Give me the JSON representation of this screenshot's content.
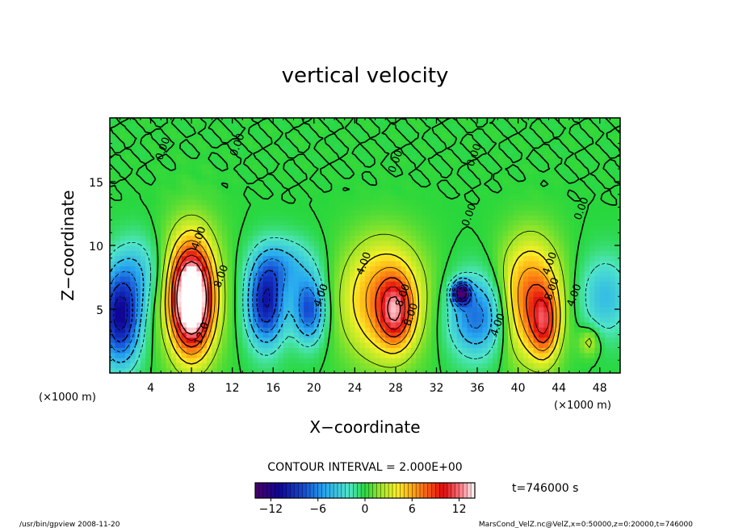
{
  "chart_data": {
    "type": "heatmap",
    "title": "vertical velocity",
    "xlabel": "X−coordinate",
    "ylabel": "Z−coordinate",
    "x_unit": "(×1000 m)",
    "x_unit_right": "(×1000 m)",
    "xlim": [
      0,
      50
    ],
    "ylim": [
      0,
      20
    ],
    "x_ticks": [
      4,
      8,
      12,
      16,
      20,
      24,
      28,
      32,
      36,
      40,
      44,
      48
    ],
    "y_ticks": [
      5,
      10,
      15
    ],
    "contour_interval_text": "CONTOUR INTERVAL = 2.000E+00",
    "time_text": "t=746000 s",
    "colorbar": {
      "min": -14,
      "max": 14,
      "ticks": [
        -12,
        -6,
        0,
        6,
        12
      ]
    },
    "contour_labels": [
      {
        "text": "0.00",
        "x": 5.5,
        "y": 17.5
      },
      {
        "text": "0.00",
        "x": 12.8,
        "y": 17.8
      },
      {
        "text": "0.00",
        "x": 28.3,
        "y": 16.5
      },
      {
        "text": "0.00",
        "x": 36.0,
        "y": 17.0
      },
      {
        "text": "0.00",
        "x": 35.5,
        "y": 12.3
      },
      {
        "text": "0.00",
        "x": 46.5,
        "y": 12.8
      },
      {
        "text": "4.00",
        "x": 9.0,
        "y": 10.5
      },
      {
        "text": "8.00",
        "x": 11.2,
        "y": 7.5
      },
      {
        "text": "12.0",
        "x": 9.3,
        "y": 3.0
      },
      {
        "text": "4.00",
        "x": 21.0,
        "y": 6.0
      },
      {
        "text": "4.00",
        "x": 25.2,
        "y": 8.5
      },
      {
        "text": "8.00",
        "x": 29.0,
        "y": 6.0
      },
      {
        "text": "8.00",
        "x": 29.8,
        "y": 4.5
      },
      {
        "text": "4.00",
        "x": 38.3,
        "y": 3.7
      },
      {
        "text": "4.00",
        "x": 43.4,
        "y": 8.5
      },
      {
        "text": "8.00",
        "x": 43.6,
        "y": 6.5
      },
      {
        "text": "4.00",
        "x": 45.8,
        "y": 6.0
      }
    ],
    "features": [
      {
        "x": 8.0,
        "y": 5.8,
        "sx": 1.3,
        "sy": 2.6,
        "v": 15
      },
      {
        "x": 8.0,
        "y": 6.3,
        "sx": 2.1,
        "sy": 3.9,
        "v": 5
      },
      {
        "x": 15.3,
        "y": 5.5,
        "sx": 1.3,
        "sy": 2.3,
        "v": -10
      },
      {
        "x": 19.5,
        "y": 5.0,
        "sx": 1.1,
        "sy": 1.8,
        "v": -8
      },
      {
        "x": 17.2,
        "y": 8.5,
        "sx": 2.0,
        "sy": 1.5,
        "v": -4
      },
      {
        "x": 26.8,
        "y": 5.8,
        "sx": 2.8,
        "sy": 3.2,
        "v": 7
      },
      {
        "x": 28.0,
        "y": 4.8,
        "sx": 1.1,
        "sy": 1.8,
        "v": 7
      },
      {
        "x": 34.4,
        "y": 6.3,
        "sx": 0.6,
        "sy": 0.6,
        "v": -12
      },
      {
        "x": 36.0,
        "y": 4.5,
        "sx": 2.0,
        "sy": 2.2,
        "v": -7
      },
      {
        "x": 41.2,
        "y": 5.8,
        "sx": 2.1,
        "sy": 3.2,
        "v": 8
      },
      {
        "x": 42.6,
        "y": 3.8,
        "sx": 0.9,
        "sy": 1.8,
        "v": 6
      },
      {
        "x": 1.0,
        "y": 4.5,
        "sx": 1.4,
        "sy": 2.6,
        "v": -11
      },
      {
        "x": 3.0,
        "y": 8.0,
        "sx": 1.5,
        "sy": 2.0,
        "v": -3
      },
      {
        "x": 48.5,
        "y": 6.0,
        "sx": 1.8,
        "sy": 2.2,
        "v": -4
      },
      {
        "x": 47.0,
        "y": 2.5,
        "sx": 0.7,
        "sy": 0.8,
        "v": 3
      }
    ]
  },
  "footer": {
    "left": "/usr/bin/gpview  2008-11-20",
    "right": "MarsCond_VelZ.nc@VelZ,x=0:50000,z=0:20000,t=746000"
  }
}
